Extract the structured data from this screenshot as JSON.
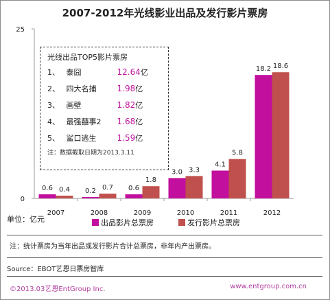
{
  "title": "2007-2012年光线影业出品及发行影片票房",
  "unit_label": "单位：亿元",
  "colors": {
    "series1": "#c20f9d",
    "series2": "#c0504d",
    "accent_text": "#b03ea0"
  },
  "chart_data": {
    "type": "bar",
    "categories": [
      "2007",
      "2008",
      "2009",
      "2010",
      "2011",
      "2012"
    ],
    "series": [
      {
        "name": "出品影片总票房",
        "values": [
          0.6,
          0.2,
          0.6,
          3.0,
          4.1,
          18.2
        ],
        "labels": [
          "0.6",
          "0.2",
          "0.6",
          "3.0",
          "4.1",
          "18.2"
        ]
      },
      {
        "name": "发行影片总票房",
        "values": [
          0.4,
          0.7,
          1.8,
          3.3,
          5.8,
          18.6
        ],
        "labels": [
          "0.4",
          "0.7",
          "1.8",
          "3.3",
          "5.8",
          "18.6"
        ]
      }
    ],
    "ylim": [
      0,
      25
    ],
    "yticks": [
      "0",
      "25"
    ],
    "grid": false,
    "legend_position": "bottom"
  },
  "top5": {
    "title": "光线出品TOP5影片票房",
    "items": [
      {
        "rank": "1、",
        "name": "泰囧",
        "value": "12.64",
        "unit": "亿"
      },
      {
        "rank": "2、",
        "name": "四大名捕",
        "value": "1.98",
        "unit": "亿"
      },
      {
        "rank": "3、",
        "name": "画壁",
        "value": "1.82",
        "unit": "亿"
      },
      {
        "rank": "4、",
        "name": "最强囍事2",
        "value": "1.68",
        "unit": "亿"
      },
      {
        "rank": "5、",
        "name": "鲨口逃生",
        "value": "1.59",
        "unit": "亿"
      }
    ],
    "note": "注：数据截取日期为2013.3.11"
  },
  "footnote": "注：统计票房为当年出品或发行影片合计总票房，非年内产出票房。",
  "source": "Source：EBOT艺恩日票房智库",
  "copyright": "©2013.03艺恩EntGroup Inc.",
  "website": "www.entgroup.com.cn"
}
